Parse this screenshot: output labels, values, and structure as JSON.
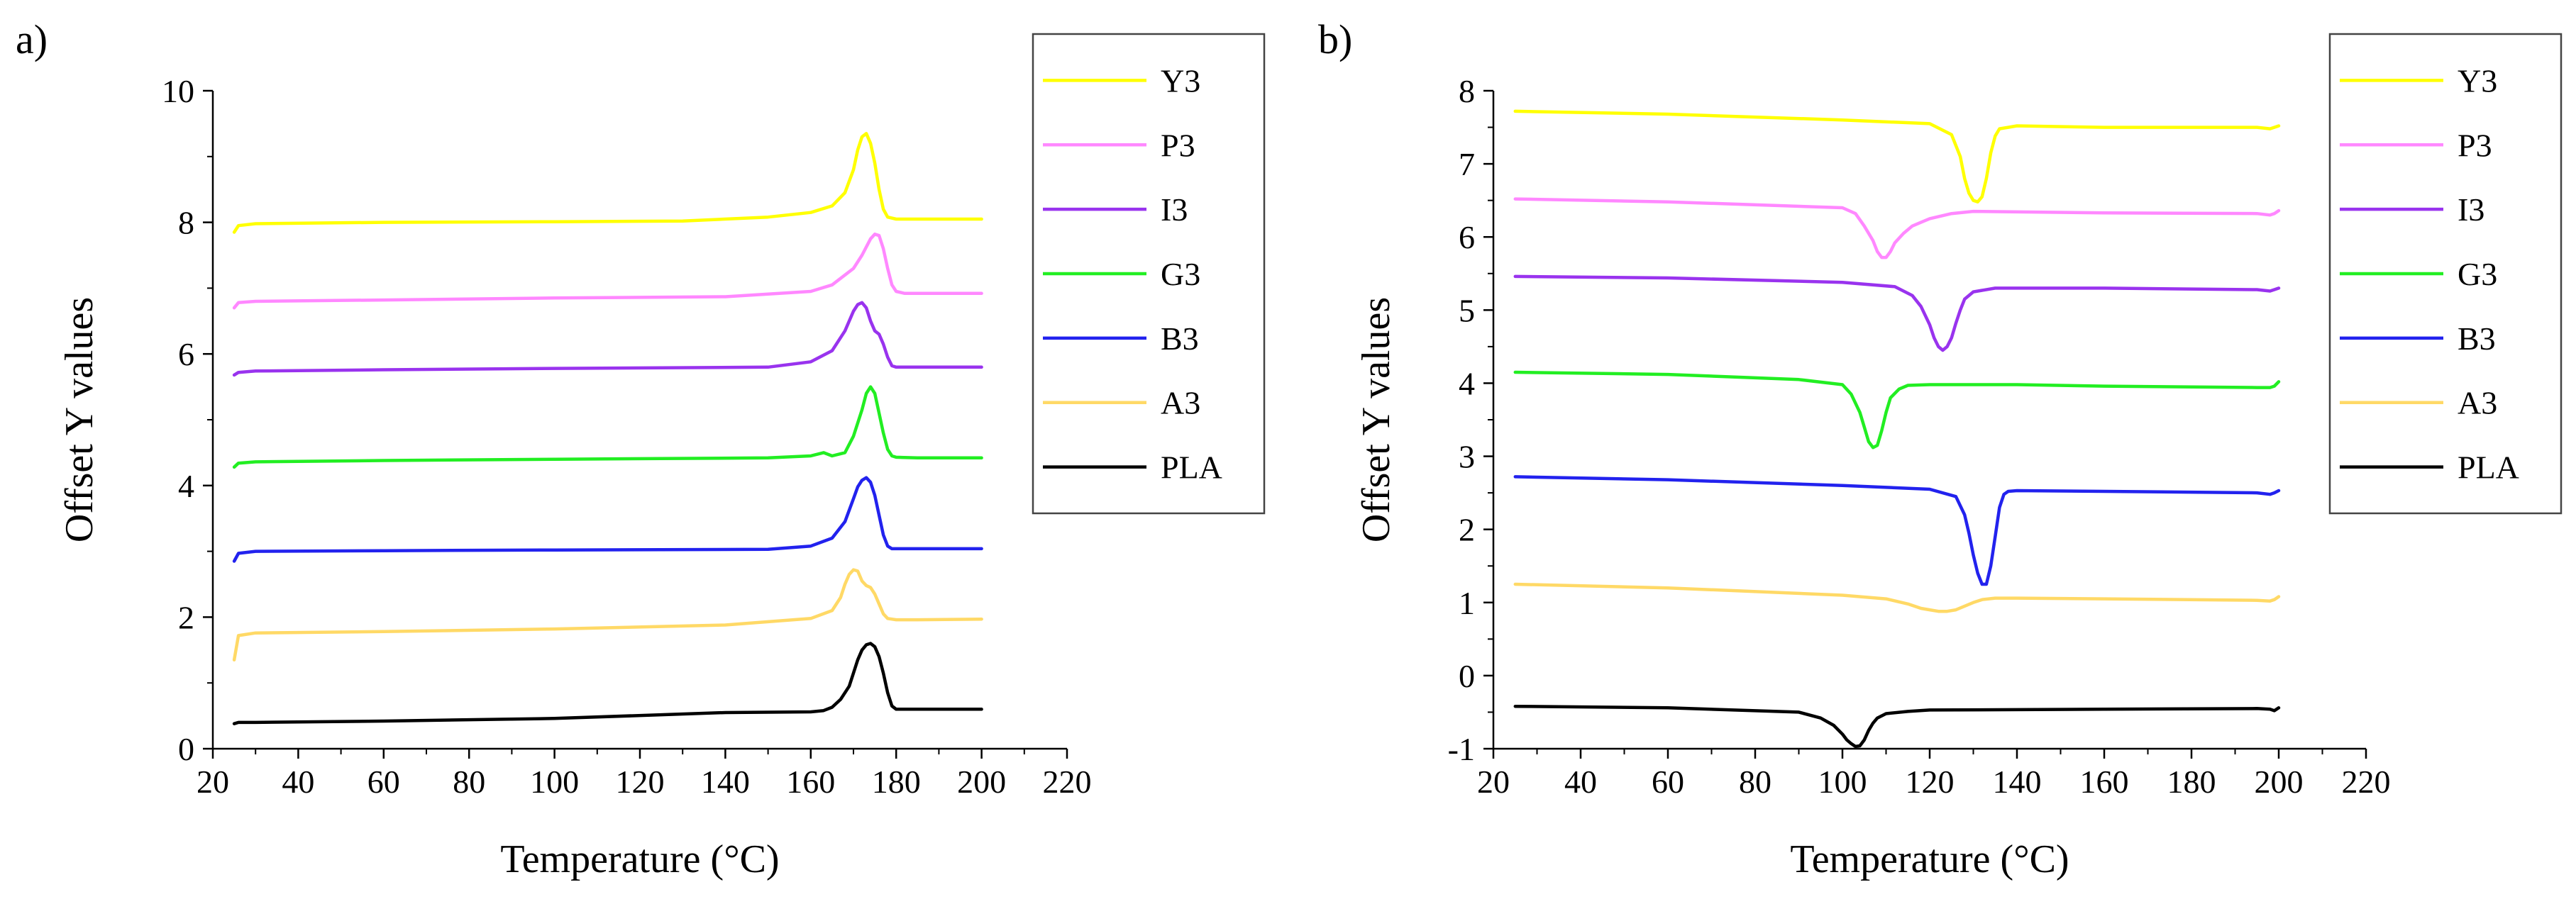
{
  "chart_data": [
    {
      "panel_label": "a)",
      "type": "line",
      "title": "",
      "xlabel": "Temperature (°C)",
      "ylabel": "Offset Y values",
      "xlim": [
        20,
        220
      ],
      "ylim": [
        0,
        10
      ],
      "xticks": [
        "20",
        "40",
        "60",
        "80",
        "100",
        "120",
        "140",
        "160",
        "180",
        "200",
        "220"
      ],
      "yticks": [
        "0",
        "2",
        "4",
        "6",
        "8",
        "10"
      ],
      "grid": false,
      "legend_position": "top-right",
      "series": [
        {
          "name": "Y3",
          "color": "#FFFF00",
          "x": [
            25,
            26,
            30,
            60,
            100,
            130,
            150,
            160,
            165,
            168,
            170,
            171,
            172,
            173,
            174,
            175,
            176,
            177,
            178,
            180,
            185,
            200
          ],
          "y": [
            7.85,
            7.95,
            7.98,
            8.0,
            8.01,
            8.02,
            8.08,
            8.15,
            8.25,
            8.45,
            8.8,
            9.1,
            9.3,
            9.35,
            9.2,
            8.9,
            8.5,
            8.2,
            8.08,
            8.05,
            8.05,
            8.05
          ]
        },
        {
          "name": "P3",
          "color": "#FF88FF",
          "x": [
            25,
            26,
            30,
            60,
            100,
            140,
            160,
            165,
            170,
            172,
            174,
            175,
            176,
            177,
            178,
            179,
            180,
            182,
            200
          ],
          "y": [
            6.7,
            6.78,
            6.8,
            6.82,
            6.85,
            6.87,
            6.95,
            7.05,
            7.3,
            7.5,
            7.75,
            7.82,
            7.8,
            7.6,
            7.3,
            7.05,
            6.95,
            6.92,
            6.92
          ]
        },
        {
          "name": "I3",
          "color": "#9933EE",
          "x": [
            25,
            26,
            30,
            60,
            100,
            150,
            160,
            165,
            168,
            170,
            171,
            172,
            173,
            174,
            175,
            176,
            177,
            178,
            179,
            180,
            185,
            200
          ],
          "y": [
            5.68,
            5.72,
            5.74,
            5.76,
            5.78,
            5.8,
            5.88,
            6.05,
            6.35,
            6.65,
            6.75,
            6.78,
            6.7,
            6.5,
            6.35,
            6.3,
            6.15,
            5.95,
            5.82,
            5.8,
            5.8,
            5.8
          ]
        },
        {
          "name": "G3",
          "color": "#22EE22",
          "x": [
            25,
            26,
            30,
            60,
            100,
            150,
            160,
            163,
            165,
            168,
            170,
            172,
            173,
            174,
            175,
            176,
            177,
            178,
            179,
            180,
            185,
            190,
            200
          ],
          "y": [
            4.28,
            4.34,
            4.36,
            4.38,
            4.4,
            4.42,
            4.45,
            4.5,
            4.45,
            4.5,
            4.75,
            5.15,
            5.4,
            5.5,
            5.4,
            5.1,
            4.8,
            4.55,
            4.45,
            4.43,
            4.42,
            4.42,
            4.42
          ]
        },
        {
          "name": "B3",
          "color": "#2222EE",
          "x": [
            25,
            26,
            30,
            60,
            100,
            150,
            160,
            165,
            168,
            170,
            171,
            172,
            173,
            174,
            175,
            176,
            177,
            178,
            179,
            180,
            185,
            200
          ],
          "y": [
            2.85,
            2.97,
            3.0,
            3.01,
            3.02,
            3.03,
            3.08,
            3.2,
            3.45,
            3.8,
            3.98,
            4.08,
            4.12,
            4.05,
            3.85,
            3.55,
            3.25,
            3.08,
            3.04,
            3.04,
            3.04,
            3.04
          ]
        },
        {
          "name": "A3",
          "color": "#FFD966",
          "x": [
            25,
            26,
            30,
            60,
            100,
            140,
            160,
            165,
            167,
            168,
            169,
            170,
            171,
            172,
            173,
            174,
            175,
            176,
            177,
            178,
            180,
            185,
            200
          ],
          "y": [
            1.35,
            1.72,
            1.76,
            1.78,
            1.82,
            1.88,
            1.98,
            2.1,
            2.3,
            2.5,
            2.65,
            2.72,
            2.7,
            2.55,
            2.48,
            2.45,
            2.35,
            2.2,
            2.05,
            1.98,
            1.96,
            1.96,
            1.97
          ]
        },
        {
          "name": "PLA",
          "color": "#000000",
          "x": [
            25,
            26,
            30,
            60,
            100,
            140,
            160,
            163,
            165,
            167,
            169,
            170,
            171,
            172,
            173,
            174,
            175,
            176,
            177,
            178,
            179,
            180,
            185,
            200
          ],
          "y": [
            0.38,
            0.4,
            0.4,
            0.42,
            0.46,
            0.55,
            0.56,
            0.58,
            0.63,
            0.75,
            0.95,
            1.15,
            1.35,
            1.5,
            1.58,
            1.6,
            1.55,
            1.4,
            1.15,
            0.85,
            0.65,
            0.6,
            0.6,
            0.6
          ]
        }
      ]
    },
    {
      "panel_label": "b)",
      "type": "line",
      "title": "",
      "xlabel": "Temperature (°C)",
      "ylabel": "Offset Y values",
      "xlim": [
        20,
        220
      ],
      "ylim": [
        -1,
        8
      ],
      "xticks": [
        "20",
        "40",
        "60",
        "80",
        "100",
        "120",
        "140",
        "160",
        "180",
        "200",
        "220"
      ],
      "yticks": [
        "-1",
        "0",
        "1",
        "2",
        "3",
        "4",
        "5",
        "6",
        "7",
        "8"
      ],
      "grid": false,
      "legend_position": "top-right",
      "series": [
        {
          "name": "Y3",
          "color": "#FFFF00",
          "x": [
            25,
            60,
            100,
            120,
            125,
            127,
            128,
            129,
            130,
            131,
            132,
            133,
            134,
            135,
            136,
            138,
            140,
            160,
            195,
            198,
            199,
            200
          ],
          "y": [
            7.72,
            7.68,
            7.6,
            7.55,
            7.4,
            7.1,
            6.8,
            6.6,
            6.5,
            6.48,
            6.55,
            6.8,
            7.15,
            7.38,
            7.48,
            7.5,
            7.52,
            7.5,
            7.5,
            7.48,
            7.5,
            7.52
          ]
        },
        {
          "name": "P3",
          "color": "#FF88FF",
          "x": [
            25,
            60,
            100,
            103,
            105,
            107,
            108,
            109,
            110,
            111,
            112,
            114,
            116,
            118,
            120,
            125,
            130,
            160,
            195,
            198,
            199,
            200
          ],
          "y": [
            6.52,
            6.48,
            6.4,
            6.32,
            6.15,
            5.95,
            5.8,
            5.72,
            5.72,
            5.8,
            5.92,
            6.05,
            6.15,
            6.2,
            6.25,
            6.32,
            6.35,
            6.33,
            6.32,
            6.3,
            6.32,
            6.36
          ]
        },
        {
          "name": "I3",
          "color": "#9933EE",
          "x": [
            25,
            60,
            100,
            112,
            116,
            118,
            120,
            121,
            122,
            123,
            124,
            125,
            126,
            127,
            128,
            130,
            135,
            160,
            195,
            198,
            199,
            200
          ],
          "y": [
            5.46,
            5.44,
            5.38,
            5.32,
            5.2,
            5.05,
            4.8,
            4.62,
            4.5,
            4.45,
            4.5,
            4.62,
            4.82,
            5.0,
            5.15,
            5.25,
            5.3,
            5.3,
            5.28,
            5.26,
            5.28,
            5.3
          ]
        },
        {
          "name": "G3",
          "color": "#22EE22",
          "x": [
            25,
            60,
            90,
            100,
            102,
            104,
            105,
            106,
            107,
            108,
            109,
            110,
            111,
            113,
            115,
            120,
            140,
            160,
            195,
            198,
            199,
            200
          ],
          "y": [
            4.15,
            4.12,
            4.05,
            3.98,
            3.85,
            3.6,
            3.4,
            3.2,
            3.12,
            3.15,
            3.35,
            3.6,
            3.8,
            3.92,
            3.97,
            3.98,
            3.98,
            3.96,
            3.94,
            3.94,
            3.96,
            4.02
          ]
        },
        {
          "name": "B3",
          "color": "#2222EE",
          "x": [
            25,
            60,
            100,
            120,
            126,
            128,
            129,
            130,
            131,
            132,
            133,
            134,
            135,
            136,
            137,
            138,
            140,
            160,
            195,
            198,
            199,
            200
          ],
          "y": [
            2.72,
            2.68,
            2.6,
            2.55,
            2.45,
            2.2,
            1.95,
            1.65,
            1.4,
            1.25,
            1.25,
            1.5,
            1.9,
            2.3,
            2.48,
            2.52,
            2.53,
            2.52,
            2.5,
            2.48,
            2.5,
            2.53
          ]
        },
        {
          "name": "A3",
          "color": "#FFD966",
          "x": [
            25,
            60,
            100,
            110,
            115,
            118,
            120,
            122,
            124,
            126,
            128,
            130,
            132,
            135,
            140,
            160,
            195,
            198,
            199,
            200
          ],
          "y": [
            1.25,
            1.2,
            1.1,
            1.05,
            0.98,
            0.92,
            0.9,
            0.88,
            0.88,
            0.9,
            0.95,
            1.0,
            1.04,
            1.06,
            1.06,
            1.05,
            1.03,
            1.02,
            1.04,
            1.08
          ]
        },
        {
          "name": "PLA",
          "color": "#000000",
          "x": [
            25,
            60,
            90,
            95,
            98,
            100,
            101,
            102,
            103,
            104,
            105,
            106,
            107,
            108,
            110,
            115,
            120,
            160,
            195,
            198,
            199,
            200
          ],
          "y": [
            -0.42,
            -0.44,
            -0.5,
            -0.58,
            -0.68,
            -0.8,
            -0.88,
            -0.93,
            -0.97,
            -0.96,
            -0.88,
            -0.75,
            -0.65,
            -0.58,
            -0.52,
            -0.49,
            -0.47,
            -0.46,
            -0.45,
            -0.46,
            -0.48,
            -0.44
          ]
        }
      ]
    }
  ]
}
